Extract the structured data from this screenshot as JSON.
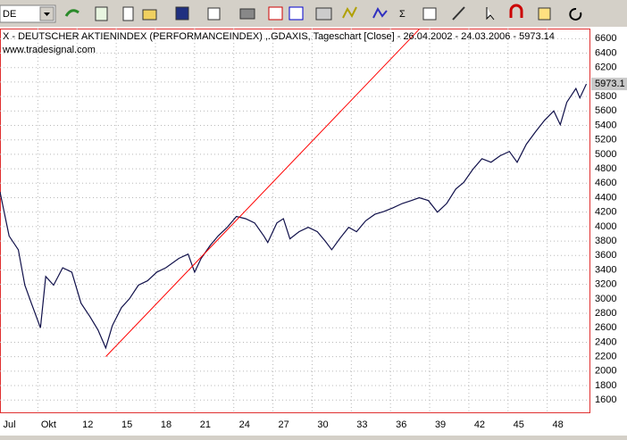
{
  "toolbar": {
    "symbol": "DE"
  },
  "chart_data": {
    "type": "line",
    "title": "X  - DEUTSCHER AKTIENINDEX (PERFORMANCEINDEX) ,.GDAXIS, Tageschart [Close] - 26.04.2002 - 24.03.2006 - 5973.14",
    "subtitle": "www.tradesignal.com",
    "x": [
      6.1,
      6.8,
      7.5,
      8.0,
      8.5,
      9.2,
      9.6,
      10.2,
      10.9,
      11.6,
      12.3,
      13.0,
      13.6,
      14.2,
      14.7,
      15.4,
      16.0,
      16.7,
      17.4,
      18.1,
      18.8,
      19.8,
      20.5,
      21.0,
      21.5,
      22.2,
      22.8,
      23.5,
      24.2,
      24.9,
      25.6,
      26.3,
      26.6,
      27.3,
      27.8,
      28.3,
      29.0,
      29.7,
      30.4,
      31.0,
      31.5,
      32.1,
      32.8,
      33.4,
      34.1,
      34.8,
      35.5,
      36.2,
      36.9,
      37.6,
      38.2,
      38.9,
      39.6,
      40.3,
      41.0,
      41.6,
      42.3,
      43.0,
      43.7,
      44.4,
      45.1,
      45.7,
      46.4,
      47.1,
      47.8,
      48.5,
      49.0,
      49.5,
      50.2,
      50.5,
      51.0
    ],
    "values": [
      4480,
      3870,
      3680,
      3190,
      2940,
      2600,
      3310,
      3190,
      3430,
      3370,
      2940,
      2750,
      2570,
      2320,
      2630,
      2880,
      3000,
      3190,
      3250,
      3370,
      3430,
      3560,
      3620,
      3370,
      3560,
      3740,
      3870,
      3990,
      4140,
      4110,
      4050,
      3870,
      3780,
      4050,
      4110,
      3830,
      3930,
      3990,
      3930,
      3800,
      3680,
      3830,
      3990,
      3930,
      4080,
      4170,
      4210,
      4260,
      4320,
      4360,
      4400,
      4360,
      4200,
      4320,
      4520,
      4610,
      4790,
      4940,
      4890,
      4980,
      5040,
      4890,
      5140,
      5310,
      5470,
      5600,
      5410,
      5720,
      5910,
      5780,
      5973.1
    ],
    "color": "#10104a",
    "trendline": {
      "x": [
        14.2,
        38.2
      ],
      "values": [
        2200,
        6730
      ],
      "color": "#ff0000"
    },
    "last_price": 5973.1,
    "xlim": [
      6.1,
      51.1
    ],
    "xticks": [
      {
        "value": 6,
        "label": "Jul"
      },
      {
        "value": 9,
        "label": "Okt"
      },
      12,
      15,
      18,
      21,
      24,
      27,
      30,
      33,
      36,
      39,
      42,
      45,
      48
    ],
    "ylim": [
      1430,
      6740
    ],
    "yticks": [
      1600,
      1800,
      2000,
      2200,
      2400,
      2600,
      2800,
      3000,
      3200,
      3400,
      3600,
      3800,
      4000,
      4200,
      4400,
      4600,
      4800,
      5000,
      5200,
      5400,
      5600,
      5800,
      6000,
      6200,
      6400,
      6600
    ],
    "grid": true
  }
}
